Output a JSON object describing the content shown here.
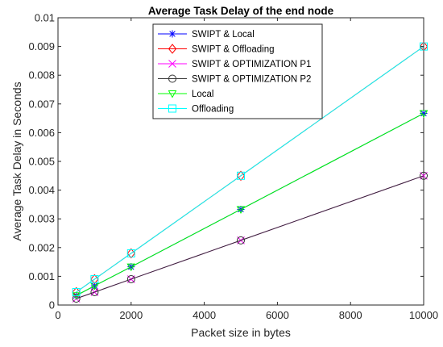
{
  "chart_data": {
    "type": "line",
    "title": "Average Task Delay of the end node",
    "xlabel": "Packet size in bytes",
    "ylabel": "Average Task Delay in Seconds",
    "xlim": [
      0,
      10000
    ],
    "ylim": [
      0,
      0.01
    ],
    "xticks": [
      "0",
      "2000",
      "4000",
      "6000",
      "8000",
      "10000"
    ],
    "yticks": [
      "0",
      "0.001",
      "0.002",
      "0.003",
      "0.004",
      "0.005",
      "0.006",
      "0.007",
      "0.008",
      "0.009",
      "0.01"
    ],
    "grid": false,
    "legend_position": "top-center",
    "x": [
      500,
      1000,
      2000,
      5000,
      10000
    ],
    "series": [
      {
        "name": "SWIPT & Local",
        "color": "#0000ff",
        "marker": "asterisk",
        "values": [
          0.00033,
          0.00067,
          0.00133,
          0.00333,
          0.00667
        ]
      },
      {
        "name": "SWIPT & Offloading",
        "color": "#ff0000",
        "marker": "diamond",
        "values": [
          0.00045,
          0.0009,
          0.0018,
          0.0045,
          0.009
        ]
      },
      {
        "name": "SWIPT & OPTIMIZATION P1",
        "color": "#ff00ff",
        "marker": "x",
        "values": [
          0.000225,
          0.00045,
          0.0009,
          0.00225,
          0.0045
        ]
      },
      {
        "name": "SWIPT & OPTIMIZATION P2",
        "color": "#333333",
        "marker": "circle",
        "values": [
          0.000225,
          0.00045,
          0.0009,
          0.00225,
          0.0045
        ]
      },
      {
        "name": "Local",
        "color": "#00ff00",
        "marker": "triangle-down",
        "values": [
          0.00033,
          0.00067,
          0.00133,
          0.00333,
          0.00667
        ]
      },
      {
        "name": "Offloading",
        "color": "#00ffff",
        "marker": "square",
        "values": [
          0.00045,
          0.0009,
          0.0018,
          0.0045,
          0.009
        ]
      }
    ]
  }
}
